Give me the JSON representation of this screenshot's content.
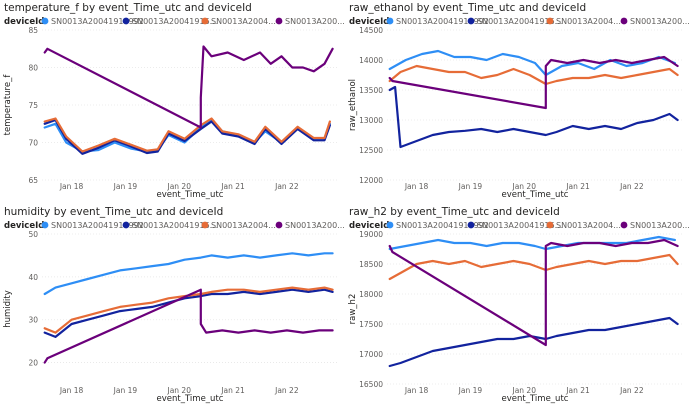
{
  "legend_label": "deviceId",
  "series_names": [
    "SN0013A20041916992",
    "SN0013A20041916...",
    "SN0013A2004...",
    "SN0013A200..."
  ],
  "colors": [
    "#2e8ef5",
    "#12239e",
    "#e66c37",
    "#6b007b"
  ],
  "x_ticks": [
    "Jan 18",
    "Jan 19",
    "Jan 20",
    "Jan 21",
    "Jan 22"
  ],
  "chart_data": [
    {
      "type": "line",
      "title": "temperature_f by event_Time_utc and deviceId",
      "xlabel": "event_Time_utc",
      "ylabel": "temperature_f",
      "ylim": [
        65,
        85
      ],
      "y_ticks": [
        "65",
        "70",
        "75",
        "80",
        "85"
      ],
      "x_range": [
        -0.55,
        4.95
      ],
      "grid": true,
      "legend_position": "top",
      "series": [
        {
          "name": "SN0013A20041916992",
          "x": [
            -0.5,
            -0.3,
            -0.1,
            0.2,
            0.5,
            0.8,
            1.1,
            1.4,
            1.6,
            1.8,
            2.1,
            2.4,
            2.6,
            2.8,
            3.1,
            3.4,
            3.6,
            3.9,
            4.2,
            4.5,
            4.7,
            4.8
          ],
          "y": [
            72,
            72.5,
            70,
            68.8,
            69,
            70,
            69.2,
            68.8,
            69,
            71,
            70,
            72,
            73,
            71.5,
            71,
            70,
            71.5,
            70,
            72,
            70.5,
            70.5,
            72.5
          ]
        },
        {
          "name": "SN0013A20041916...",
          "x": [
            -0.5,
            -0.3,
            -0.1,
            0.2,
            0.5,
            0.8,
            1.1,
            1.4,
            1.6,
            1.8,
            2.1,
            2.4,
            2.6,
            2.8,
            3.1,
            3.4,
            3.6,
            3.9,
            4.2,
            4.5,
            4.7,
            4.8
          ],
          "y": [
            72.5,
            73,
            70.5,
            68.5,
            69.3,
            70.3,
            69.5,
            68.6,
            68.8,
            71.2,
            70.2,
            71.8,
            72.8,
            71.2,
            70.8,
            69.8,
            71.8,
            69.8,
            71.8,
            70.3,
            70.3,
            72.3
          ]
        },
        {
          "name": "SN0013A2004...",
          "x": [
            -0.5,
            -0.3,
            -0.1,
            0.2,
            0.5,
            0.8,
            1.1,
            1.4,
            1.6,
            1.8,
            2.1,
            2.4,
            2.6,
            2.8,
            3.1,
            3.4,
            3.6,
            3.9,
            4.2,
            4.5,
            4.7,
            4.8
          ],
          "y": [
            72.8,
            73.2,
            70.8,
            68.8,
            69.6,
            70.5,
            69.7,
            68.9,
            69.1,
            71.5,
            70.5,
            72.3,
            73.2,
            71.5,
            71.1,
            70.1,
            72.1,
            70.1,
            72.1,
            70.6,
            70.6,
            72.8
          ]
        },
        {
          "name": "SN0013A200...",
          "x": [
            -0.5,
            -0.45,
            2.4,
            2.4,
            2.45,
            2.6,
            2.9,
            3.2,
            3.5,
            3.7,
            3.9,
            4.1,
            4.3,
            4.5,
            4.7,
            4.85
          ],
          "y": [
            82,
            82.5,
            72,
            76,
            82.8,
            81.5,
            82,
            81,
            82,
            80.5,
            81.5,
            80,
            80,
            79.5,
            80.5,
            82.5
          ]
        }
      ]
    },
    {
      "type": "line",
      "title": "raw_ethanol by event_Time_utc and deviceId",
      "xlabel": "event_Time_utc",
      "ylabel": "raw_ethanol",
      "ylim": [
        12000,
        14500
      ],
      "y_ticks": [
        "12000",
        "12500",
        "13000",
        "13500",
        "14000",
        "14500"
      ],
      "x_range": [
        -0.55,
        4.95
      ],
      "grid": true,
      "legend_position": "top",
      "series": [
        {
          "name": "SN0013A20041916992",
          "x": [
            -0.5,
            -0.2,
            0.1,
            0.4,
            0.7,
            1.0,
            1.3,
            1.6,
            1.9,
            2.2,
            2.4,
            2.7,
            3.0,
            3.3,
            3.6,
            3.9,
            4.2,
            4.5,
            4.8
          ],
          "y": [
            13850,
            14000,
            14100,
            14150,
            14050,
            14050,
            14000,
            14100,
            14050,
            13950,
            13750,
            13900,
            13950,
            13850,
            14000,
            13900,
            13950,
            14050,
            13950
          ]
        },
        {
          "name": "SN0013A20041916...",
          "x": [
            -0.5,
            -0.4,
            -0.3,
            0.0,
            0.3,
            0.6,
            0.9,
            1.2,
            1.5,
            1.8,
            2.1,
            2.4,
            2.6,
            2.9,
            3.2,
            3.5,
            3.8,
            4.1,
            4.4,
            4.7,
            4.85
          ],
          "y": [
            13500,
            13550,
            12550,
            12650,
            12750,
            12800,
            12820,
            12850,
            12800,
            12850,
            12800,
            12750,
            12800,
            12900,
            12850,
            12900,
            12850,
            12950,
            13000,
            13100,
            13000
          ]
        },
        {
          "name": "SN0013A2004...",
          "x": [
            -0.5,
            -0.3,
            0.0,
            0.3,
            0.6,
            0.9,
            1.2,
            1.5,
            1.8,
            2.1,
            2.4,
            2.6,
            2.9,
            3.2,
            3.5,
            3.8,
            4.1,
            4.4,
            4.7,
            4.85
          ],
          "y": [
            13650,
            13800,
            13900,
            13850,
            13800,
            13800,
            13700,
            13750,
            13850,
            13750,
            13600,
            13650,
            13700,
            13700,
            13750,
            13700,
            13750,
            13800,
            13850,
            13750
          ]
        },
        {
          "name": "SN0013A200...",
          "x": [
            -0.5,
            -0.45,
            2.4,
            2.4,
            2.5,
            2.8,
            3.1,
            3.4,
            3.7,
            4.0,
            4.3,
            4.6,
            4.85
          ],
          "y": [
            13700,
            13650,
            13200,
            13900,
            14000,
            13950,
            14000,
            13950,
            14000,
            13950,
            14000,
            14050,
            13900
          ]
        }
      ]
    },
    {
      "type": "line",
      "title": "humidity by event_Time_utc and deviceId",
      "xlabel": "event_Time_utc",
      "ylabel": "humidity",
      "ylim": [
        15,
        50
      ],
      "y_ticks": [
        "20",
        "30",
        "40",
        "50"
      ],
      "x_range": [
        -0.55,
        4.95
      ],
      "grid": true,
      "legend_position": "top",
      "series": [
        {
          "name": "SN0013A20041916992",
          "x": [
            -0.5,
            -0.3,
            0.0,
            0.3,
            0.6,
            0.9,
            1.2,
            1.5,
            1.8,
            2.1,
            2.4,
            2.6,
            2.9,
            3.2,
            3.5,
            3.8,
            4.1,
            4.4,
            4.7,
            4.85
          ],
          "y": [
            36,
            37.5,
            38.5,
            39.5,
            40.5,
            41.5,
            42,
            42.5,
            43,
            44,
            44.5,
            45,
            44.5,
            45,
            44.5,
            45,
            45.5,
            45,
            45.5,
            45.5
          ]
        },
        {
          "name": "SN0013A20041916...",
          "x": [
            -0.5,
            -0.3,
            0.0,
            0.3,
            0.6,
            0.9,
            1.2,
            1.5,
            1.8,
            2.1,
            2.4,
            2.6,
            2.9,
            3.2,
            3.5,
            3.8,
            4.1,
            4.4,
            4.7,
            4.85
          ],
          "y": [
            27,
            26,
            29,
            30,
            31,
            32,
            32.5,
            33,
            34,
            35,
            35.5,
            36,
            36,
            36.5,
            36,
            36.5,
            37,
            36.5,
            37,
            36.5
          ]
        },
        {
          "name": "SN0013A2004...",
          "x": [
            -0.5,
            -0.3,
            0.0,
            0.3,
            0.6,
            0.9,
            1.2,
            1.5,
            1.8,
            2.1,
            2.4,
            2.6,
            2.9,
            3.2,
            3.5,
            3.8,
            4.1,
            4.4,
            4.7,
            4.85
          ],
          "y": [
            28,
            27,
            30,
            31,
            32,
            33,
            33.5,
            34,
            35,
            35.5,
            36,
            36.5,
            37,
            37,
            36.5,
            37,
            37.5,
            37,
            37.5,
            37
          ]
        },
        {
          "name": "SN0013A200...",
          "x": [
            -0.5,
            -0.45,
            2.4,
            2.4,
            2.5,
            2.8,
            3.1,
            3.4,
            3.7,
            4.0,
            4.3,
            4.6,
            4.85
          ],
          "y": [
            20,
            21,
            37,
            29,
            27,
            27.5,
            27,
            27.5,
            27,
            27.5,
            27,
            27.5,
            27.5
          ]
        }
      ]
    },
    {
      "type": "line",
      "title": "raw_h2 by event_Time_utc and deviceId",
      "xlabel": "event_Time_utc",
      "ylabel": "raw_h2",
      "ylim": [
        16500,
        19000
      ],
      "y_ticks": [
        "16500",
        "17000",
        "17500",
        "18000",
        "18500",
        "19000"
      ],
      "x_range": [
        -0.55,
        4.95
      ],
      "grid": true,
      "legend_position": "top",
      "series": [
        {
          "name": "SN0013A20041916992",
          "x": [
            -0.5,
            -0.2,
            0.1,
            0.4,
            0.7,
            1.0,
            1.3,
            1.6,
            1.9,
            2.2,
            2.4,
            2.7,
            3.0,
            3.3,
            3.6,
            3.9,
            4.2,
            4.5,
            4.8
          ],
          "y": [
            18750,
            18800,
            18850,
            18900,
            18850,
            18850,
            18800,
            18850,
            18850,
            18800,
            18750,
            18800,
            18850,
            18850,
            18850,
            18850,
            18900,
            18950,
            18900
          ]
        },
        {
          "name": "SN0013A20041916...",
          "x": [
            -0.5,
            -0.3,
            0.0,
            0.3,
            0.6,
            0.9,
            1.2,
            1.5,
            1.8,
            2.1,
            2.4,
            2.6,
            2.9,
            3.2,
            3.5,
            3.8,
            4.1,
            4.4,
            4.7,
            4.85
          ],
          "y": [
            16800,
            16850,
            16950,
            17050,
            17100,
            17150,
            17200,
            17250,
            17250,
            17300,
            17250,
            17300,
            17350,
            17400,
            17400,
            17450,
            17500,
            17550,
            17600,
            17500
          ]
        },
        {
          "name": "SN0013A2004...",
          "x": [
            -0.5,
            -0.3,
            0.0,
            0.3,
            0.6,
            0.9,
            1.2,
            1.5,
            1.8,
            2.1,
            2.4,
            2.6,
            2.9,
            3.2,
            3.5,
            3.8,
            4.1,
            4.4,
            4.7,
            4.85
          ],
          "y": [
            18250,
            18350,
            18500,
            18550,
            18500,
            18550,
            18450,
            18500,
            18550,
            18500,
            18400,
            18450,
            18500,
            18550,
            18500,
            18550,
            18550,
            18600,
            18650,
            18500
          ]
        },
        {
          "name": "SN0013A200...",
          "x": [
            -0.5,
            -0.45,
            2.4,
            2.4,
            2.5,
            2.8,
            3.1,
            3.4,
            3.7,
            4.0,
            4.3,
            4.6,
            4.85
          ],
          "y": [
            18800,
            18700,
            17150,
            18800,
            18850,
            18800,
            18850,
            18850,
            18800,
            18850,
            18850,
            18900,
            18800
          ]
        }
      ]
    }
  ]
}
